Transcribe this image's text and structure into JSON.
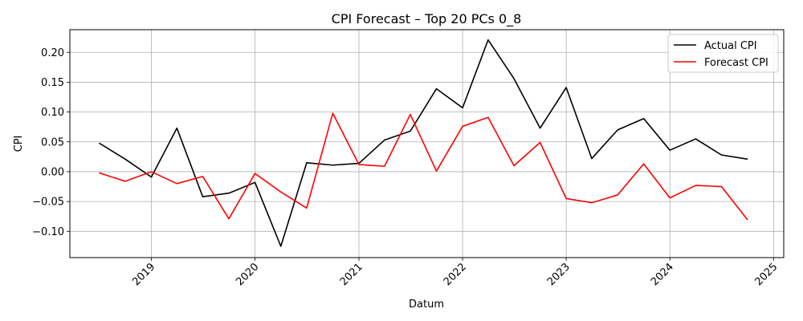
{
  "chart_data": {
    "type": "line",
    "title": "CPI Forecast – Top 20 PCs 0_8",
    "xlabel": "Datum",
    "ylabel": "CPI",
    "x_type": "date",
    "xlim": [
      "2018-03-20",
      "2025-02-05"
    ],
    "ylim": [
      -0.144,
      0.238
    ],
    "x_ticks": [
      {
        "date": "2019-01-01",
        "label": "2019"
      },
      {
        "date": "2020-01-01",
        "label": "2020"
      },
      {
        "date": "2021-01-01",
        "label": "2021"
      },
      {
        "date": "2022-01-01",
        "label": "2022"
      },
      {
        "date": "2023-01-01",
        "label": "2023"
      },
      {
        "date": "2024-01-01",
        "label": "2024"
      },
      {
        "date": "2025-01-01",
        "label": "2025"
      }
    ],
    "y_ticks": [
      {
        "value": -0.1,
        "label": "−0.10"
      },
      {
        "value": -0.05,
        "label": "−0.05"
      },
      {
        "value": 0.0,
        "label": "0.00"
      },
      {
        "value": 0.05,
        "label": "0.05"
      },
      {
        "value": 0.1,
        "label": "0.10"
      },
      {
        "value": 0.15,
        "label": "0.15"
      },
      {
        "value": 0.2,
        "label": "0.20"
      }
    ],
    "grid": true,
    "legend_position": "top-right",
    "x": [
      "2018-07-01",
      "2018-10-01",
      "2019-01-01",
      "2019-04-01",
      "2019-07-01",
      "2019-10-01",
      "2020-01-01",
      "2020-04-01",
      "2020-07-01",
      "2020-10-01",
      "2021-01-01",
      "2021-04-01",
      "2021-07-01",
      "2021-10-01",
      "2022-01-01",
      "2022-04-01",
      "2022-07-01",
      "2022-10-01",
      "2023-01-01",
      "2023-04-01",
      "2023-07-01",
      "2023-10-01",
      "2024-01-01",
      "2024-04-01",
      "2024-07-01",
      "2024-10-01"
    ],
    "series": [
      {
        "name": "Actual CPI",
        "color": "#000000",
        "values": [
          0.048,
          0.021,
          -0.009,
          0.073,
          -0.042,
          -0.036,
          -0.018,
          -0.125,
          0.015,
          0.011,
          0.014,
          0.053,
          0.068,
          0.139,
          0.107,
          0.221,
          0.156,
          0.073,
          0.141,
          0.022,
          0.07,
          0.089,
          0.036,
          0.055,
          0.028,
          0.021
        ]
      },
      {
        "name": "Forecast CPI",
        "color": "#ff0000",
        "values": [
          -0.002,
          -0.016,
          0.0,
          -0.02,
          -0.008,
          -0.079,
          -0.003,
          -0.034,
          -0.061,
          0.098,
          0.012,
          0.009,
          0.096,
          0.001,
          0.076,
          0.091,
          0.01,
          0.049,
          -0.045,
          -0.052,
          -0.039,
          0.013,
          -0.044,
          -0.023,
          -0.025,
          -0.081
        ]
      }
    ]
  }
}
